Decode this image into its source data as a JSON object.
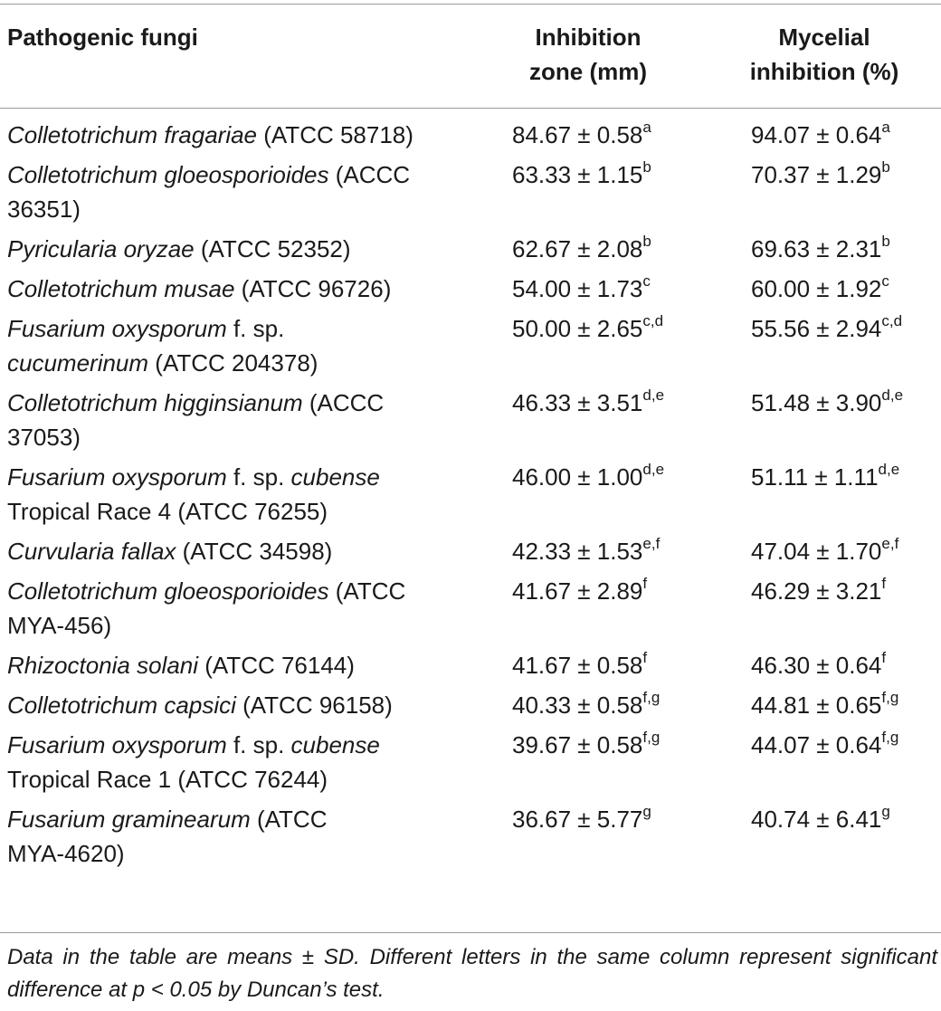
{
  "table": {
    "headers": {
      "col0": "Pathogenic fungi",
      "col1_line1": "Inhibition",
      "col1_line2": "zone (mm)",
      "col2_line1": "Mycelial",
      "col2_line2": "inhibition (%)"
    },
    "rows": [
      {
        "genus_species": "Colletotrichum fragariae",
        "forma": "",
        "rest": " (ATCC 58718)",
        "line2": "",
        "zone": "84.67 ± 0.58",
        "zone_sup": "a",
        "myc": "94.07 ± 0.64",
        "myc_sup": "a"
      },
      {
        "genus_species": "Colletotrichum gloeosporioides",
        "forma": "",
        "rest": " (ACCC",
        "line2": "36351)",
        "zone": "63.33 ± 1.15",
        "zone_sup": "b",
        "myc": "70.37 ± 1.29",
        "myc_sup": "b"
      },
      {
        "genus_species": "Pyricularia oryzae",
        "forma": "",
        "rest": " (ATCC 52352)",
        "line2": "",
        "zone": "62.67 ± 2.08",
        "zone_sup": "b",
        "myc": "69.63 ± 2.31",
        "myc_sup": "b"
      },
      {
        "genus_species": "Colletotrichum musae",
        "forma": "",
        "rest": " (ATCC 96726)",
        "line2": "",
        "zone": "54.00 ± 1.73",
        "zone_sup": "c",
        "myc": "60.00 ± 1.92",
        "myc_sup": "c"
      },
      {
        "genus_species": "Fusarium oxysporum",
        "forma": "",
        "rest": " f. sp.",
        "line2_italic": "cucumerinum",
        "line2": " (ATCC 204378)",
        "zone": "50.00 ± 2.65",
        "zone_sup": "c,d",
        "myc": "55.56 ± 2.94",
        "myc_sup": "c,d"
      },
      {
        "genus_species": "Colletotrichum higginsianum",
        "forma": "",
        "rest": " (ACCC",
        "line2": "37053)",
        "zone": "46.33 ± 3.51",
        "zone_sup": "d,e",
        "myc": "51.48 ± 3.90",
        "myc_sup": "d,e"
      },
      {
        "genus_species": "Fusarium oxysporum",
        "forma": "cubense",
        "rest": " f. sp. ",
        "line2": "Tropical Race 4 (ATCC 76255)",
        "zone": "46.00 ± 1.00",
        "zone_sup": "d,e",
        "myc": "51.11 ± 1.11",
        "myc_sup": "d,e"
      },
      {
        "genus_species": "Curvularia fallax",
        "forma": "",
        "rest": " (ATCC 34598)",
        "line2": "",
        "zone": "42.33 ± 1.53",
        "zone_sup": "e,f",
        "myc": "47.04 ± 1.70",
        "myc_sup": "e,f"
      },
      {
        "genus_species": "Colletotrichum gloeosporioides",
        "forma": "",
        "rest": " (ATCC",
        "line2": "MYA-456)",
        "zone": "41.67 ± 2.89",
        "zone_sup": "f",
        "myc": "46.29 ± 3.21",
        "myc_sup": "f"
      },
      {
        "genus_species": "Rhizoctonia solani",
        "forma": "",
        "rest": " (ATCC 76144)",
        "line2": "",
        "zone": "41.67 ± 0.58",
        "zone_sup": "f",
        "myc": "46.30 ± 0.64",
        "myc_sup": "f"
      },
      {
        "genus_species": "Colletotrichum capsici",
        "forma": "",
        "rest": " (ATCC 96158)",
        "line2": "",
        "zone": "40.33 ± 0.58",
        "zone_sup": "f,g",
        "myc": "44.81 ± 0.65",
        "myc_sup": "f,g"
      },
      {
        "genus_species": "Fusarium oxysporum",
        "forma": "cubense",
        "rest": " f. sp. ",
        "line2": "Tropical Race 1 (ATCC 76244)",
        "zone": "39.67 ± 0.58",
        "zone_sup": "f,g",
        "myc": "44.07 ± 0.64",
        "myc_sup": "f,g"
      },
      {
        "genus_species": "Fusarium graminearum",
        "forma": "",
        "rest": " (ATCC",
        "line2": "MYA-4620)",
        "zone": "36.67 ± 5.77",
        "zone_sup": "g",
        "myc": "40.74 ± 6.41",
        "myc_sup": "g"
      }
    ]
  },
  "note": "Data in the table are means ± SD. Different letters in the same column represent significant difference at p < 0.05 by Duncan’s test."
}
